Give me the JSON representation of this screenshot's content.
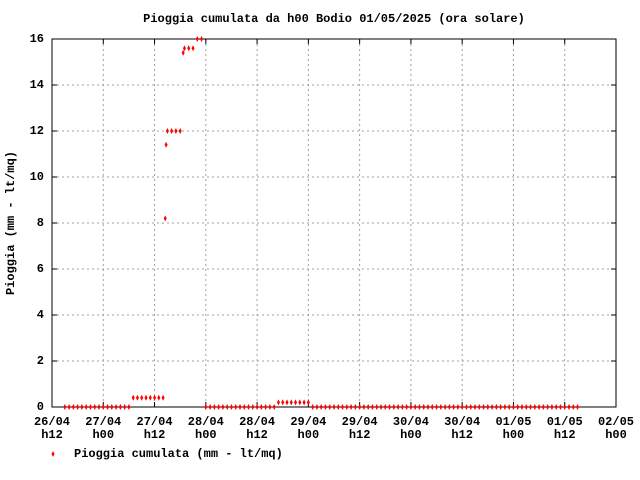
{
  "chart_data": {
    "type": "scatter",
    "title": "Pioggia cumulata da h00 Bodio 01/05/2025 (ora solare)",
    "y_label": "Pioggia (mm - lt/mq)",
    "grid": true,
    "legend": "bottom-left",
    "xlim": [
      12,
      144
    ],
    "ylim": [
      0,
      16
    ],
    "yticks": [
      0,
      2,
      4,
      6,
      8,
      10,
      12,
      14,
      16
    ],
    "xticks": [
      {
        "value": 12,
        "label": [
          "26/04",
          "h12"
        ]
      },
      {
        "value": 24,
        "label": [
          "27/04",
          "h00"
        ]
      },
      {
        "value": 36,
        "label": [
          "27/04",
          "h12"
        ]
      },
      {
        "value": 48,
        "label": [
          "28/04",
          "h00"
        ]
      },
      {
        "value": 60,
        "label": [
          "28/04",
          "h12"
        ]
      },
      {
        "value": 72,
        "label": [
          "29/04",
          "h00"
        ]
      },
      {
        "value": 84,
        "label": [
          "29/04",
          "h12"
        ]
      },
      {
        "value": 96,
        "label": [
          "30/04",
          "h00"
        ]
      },
      {
        "value": 108,
        "label": [
          "30/04",
          "h12"
        ]
      },
      {
        "value": 120,
        "label": [
          "01/05",
          "h00"
        ]
      },
      {
        "value": 132,
        "label": [
          "01/05",
          "h12"
        ]
      },
      {
        "value": 144,
        "label": [
          "02/05",
          "h00"
        ]
      }
    ],
    "series": [
      {
        "name": "Pioggia cumulata (mm - lt/mq)",
        "color": "#ff0000",
        "x": [
          15,
          16,
          17,
          18,
          19,
          20,
          21,
          22,
          23,
          24,
          25,
          26,
          27,
          28,
          29,
          30,
          31,
          32,
          33,
          34,
          35,
          36,
          37,
          38,
          38.5,
          38.7,
          39,
          40,
          41,
          42,
          42.7,
          43,
          44,
          45,
          46,
          47,
          48,
          49,
          50,
          51,
          52,
          53,
          54,
          55,
          56,
          57,
          58,
          59,
          60,
          61,
          62,
          63,
          64,
          65,
          66,
          67,
          68,
          69,
          70,
          71,
          72,
          73,
          74,
          75,
          76,
          77,
          78,
          79,
          80,
          81,
          82,
          83,
          84,
          85,
          86,
          87,
          88,
          89,
          90,
          91,
          92,
          93,
          94,
          95,
          96,
          97,
          98,
          99,
          100,
          101,
          102,
          103,
          104,
          105,
          106,
          107,
          108,
          109,
          110,
          111,
          112,
          113,
          114,
          115,
          116,
          117,
          118,
          119,
          120,
          121,
          122,
          123,
          124,
          125,
          126,
          127,
          128,
          129,
          130,
          131,
          132,
          133,
          134,
          135
        ],
        "values": [
          0,
          0,
          0,
          0,
          0,
          0,
          0,
          0,
          0,
          0,
          0,
          0,
          0,
          0,
          0,
          0,
          0.4,
          0.4,
          0.4,
          0.4,
          0.4,
          0.4,
          0.4,
          0.4,
          8.2,
          11.4,
          12,
          12,
          12,
          12,
          15.4,
          15.6,
          15.6,
          15.6,
          16,
          16,
          0,
          0,
          0,
          0,
          0,
          0,
          0,
          0,
          0,
          0,
          0,
          0,
          0,
          0,
          0,
          0,
          0,
          0.2,
          0.2,
          0.2,
          0.2,
          0.2,
          0.2,
          0.2,
          0.2,
          0,
          0,
          0,
          0,
          0,
          0,
          0,
          0,
          0,
          0,
          0,
          0,
          0,
          0,
          0,
          0,
          0,
          0,
          0,
          0,
          0,
          0,
          0,
          0,
          0,
          0,
          0,
          0,
          0,
          0,
          0,
          0,
          0,
          0,
          0,
          0,
          0,
          0,
          0,
          0,
          0,
          0,
          0,
          0,
          0,
          0,
          0,
          0,
          0,
          0,
          0,
          0,
          0,
          0,
          0,
          0,
          0,
          0,
          0,
          0,
          0,
          0,
          0
        ]
      }
    ]
  }
}
